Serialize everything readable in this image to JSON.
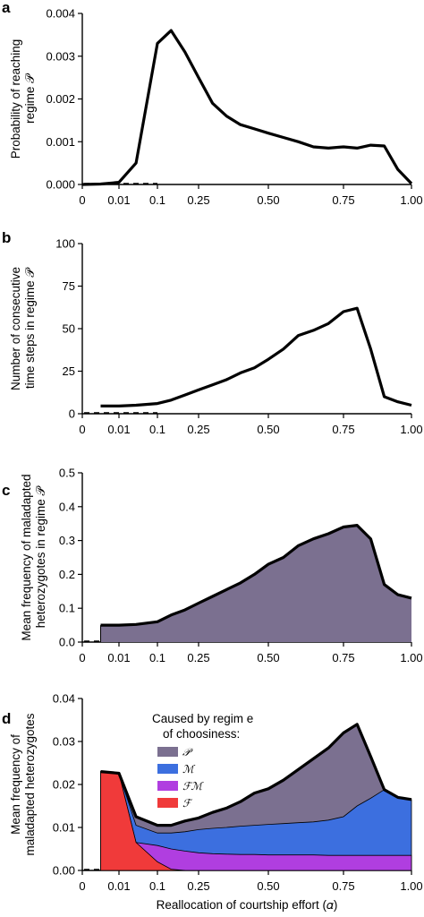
{
  "x_tick_labels": [
    "0",
    "0.01",
    "0.1",
    "0.25",
    "0.50",
    "0.75",
    "1.00"
  ],
  "x_tick_values": [
    0,
    0.01,
    0.1,
    0.25,
    0.5,
    0.75,
    1.0
  ],
  "colors": {
    "P": "#7b7090",
    "M": "#3c6fdf",
    "FM": "#b03ee0",
    "F": "#f03a3a"
  },
  "chart_data": [
    {
      "panel_label": "a",
      "type": "line",
      "ylabel": "Probability of reaching regime 𝒫",
      "ylim": [
        0,
        0.004
      ],
      "y_ticks": [
        "0.000",
        "0.001",
        "0.002",
        "0.003",
        "0.004"
      ],
      "x": [
        0,
        0.005,
        0.01,
        0.05,
        0.1,
        0.15,
        0.2,
        0.25,
        0.3,
        0.35,
        0.4,
        0.45,
        0.5,
        0.55,
        0.6,
        0.65,
        0.7,
        0.75,
        0.8,
        0.85,
        0.9,
        0.95,
        1.0
      ],
      "values": [
        0,
        1e-05,
        5e-05,
        0.0005,
        0.0033,
        0.0036,
        0.0031,
        0.0025,
        0.0019,
        0.0016,
        0.0014,
        0.0013,
        0.0012,
        0.0011,
        0.001,
        0.00088,
        0.00085,
        0.00088,
        0.00085,
        0.00092,
        0.0009,
        0.00035,
        2e-05
      ]
    },
    {
      "panel_label": "b",
      "type": "line",
      "ylabel": "Number of consecutive time steps in regime 𝒫",
      "ylim": [
        0,
        100
      ],
      "y_ticks": [
        "0",
        "25",
        "50",
        "75",
        "100"
      ],
      "x": [
        0.005,
        0.01,
        0.05,
        0.1,
        0.15,
        0.2,
        0.25,
        0.3,
        0.35,
        0.4,
        0.45,
        0.5,
        0.55,
        0.6,
        0.65,
        0.7,
        0.75,
        0.8,
        0.85,
        0.9,
        0.95,
        1.0
      ],
      "values": [
        4.5,
        4.5,
        5,
        6,
        8,
        11,
        14,
        17,
        20,
        24,
        27,
        32,
        38,
        46,
        49,
        53,
        60,
        62,
        38,
        10,
        7,
        5
      ]
    },
    {
      "panel_label": "c",
      "type": "area",
      "ylabel": "Mean frequency of maladapted heterozygotes in regime 𝒫",
      "ylim": [
        0,
        0.5
      ],
      "y_ticks": [
        "0.0",
        "0.1",
        "0.2",
        "0.3",
        "0.4",
        "0.5"
      ],
      "x": [
        0.005,
        0.01,
        0.05,
        0.1,
        0.15,
        0.2,
        0.25,
        0.3,
        0.35,
        0.4,
        0.45,
        0.5,
        0.55,
        0.6,
        0.65,
        0.7,
        0.75,
        0.8,
        0.85,
        0.9,
        0.95,
        1.0
      ],
      "values": [
        0.05,
        0.05,
        0.052,
        0.06,
        0.08,
        0.095,
        0.115,
        0.135,
        0.155,
        0.175,
        0.2,
        0.23,
        0.25,
        0.285,
        0.305,
        0.32,
        0.34,
        0.345,
        0.305,
        0.17,
        0.14,
        0.13
      ]
    },
    {
      "panel_label": "d",
      "type": "area",
      "ylabel": "Mean frequency of maladapted heterozygotes",
      "xlabel": "Reallocation of courtship effort (𝛼)",
      "ylim": [
        0,
        0.04
      ],
      "y_ticks": [
        "0.00",
        "0.01",
        "0.02",
        "0.03",
        "0.04"
      ],
      "legend_title": "Caused by regim e of choosiness:",
      "series": [
        {
          "name": "𝒫",
          "x": [
            0.005,
            0.01,
            0.05,
            0.1,
            0.15,
            0.2,
            0.25,
            0.3,
            0.35,
            0.4,
            0.45,
            0.5,
            0.55,
            0.6,
            0.65,
            0.7,
            0.75,
            0.8,
            0.85,
            0.9,
            0.95,
            1.0
          ],
          "values": [
            0.023,
            0.0226,
            0.0125,
            0.0105,
            0.0105,
            0.0115,
            0.0122,
            0.0135,
            0.0145,
            0.016,
            0.018,
            0.019,
            0.021,
            0.0235,
            0.026,
            0.0285,
            0.032,
            0.034,
            0.0265,
            0.0188,
            0.017,
            0.0165
          ]
        },
        {
          "name": "ℳ",
          "x": [
            0.005,
            0.01,
            0.05,
            0.1,
            0.15,
            0.2,
            0.25,
            0.3,
            0.35,
            0.4,
            0.45,
            0.5,
            0.55,
            0.6,
            0.65,
            0.7,
            0.75,
            0.8,
            0.85,
            0.9,
            0.95,
            1.0
          ],
          "values": [
            0.023,
            0.0226,
            0.0105,
            0.0087,
            0.0087,
            0.009,
            0.0095,
            0.0098,
            0.01,
            0.0103,
            0.0105,
            0.0107,
            0.0109,
            0.0111,
            0.0113,
            0.0117,
            0.0125,
            0.015,
            0.0168,
            0.0188,
            0.017,
            0.0165
          ]
        },
        {
          "name": "ℱℳ",
          "x": [
            0.005,
            0.01,
            0.05,
            0.1,
            0.15,
            0.2,
            0.25,
            0.3,
            0.35,
            0.4,
            0.45,
            0.5,
            0.55,
            0.6,
            0.65,
            0.7,
            0.75,
            0.8,
            0.85,
            0.9,
            0.95,
            1.0
          ],
          "values": [
            0.023,
            0.0226,
            0.0065,
            0.0058,
            0.005,
            0.0045,
            0.0041,
            0.0039,
            0.0038,
            0.0037,
            0.0037,
            0.0036,
            0.0036,
            0.0036,
            0.0036,
            0.0035,
            0.0035,
            0.0035,
            0.0035,
            0.0035,
            0.0035,
            0.0035
          ]
        },
        {
          "name": "ℱ",
          "x": [
            0.005,
            0.01,
            0.05,
            0.1,
            0.15,
            0.2
          ],
          "values": [
            0.023,
            0.0226,
            0.0065,
            0.002,
            0.0003,
            0
          ]
        }
      ]
    }
  ]
}
